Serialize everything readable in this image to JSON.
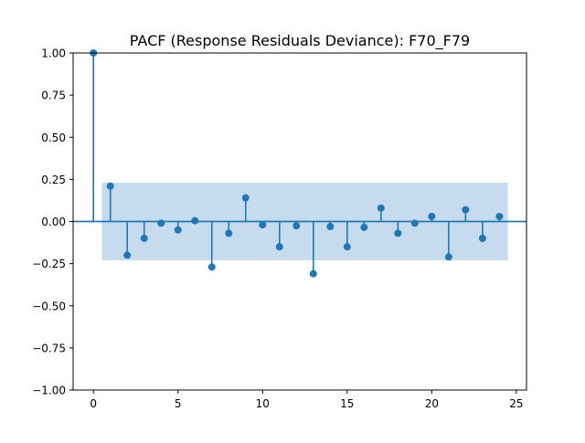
{
  "chart_data": {
    "type": "stem",
    "title": "PACF (Response Residuals Deviance): F70_F79",
    "xlabel": "",
    "ylabel": "",
    "xlim": [
      -1.2,
      25.6
    ],
    "ylim": [
      -1.0,
      1.0
    ],
    "x_ticks": [
      0,
      5,
      10,
      15,
      20,
      25
    ],
    "x_tick_labels": [
      "0",
      "5",
      "10",
      "15",
      "20",
      "25"
    ],
    "y_ticks": [
      1.0,
      0.75,
      0.5,
      0.25,
      0.0,
      -0.25,
      -0.5,
      -0.75,
      -1.0
    ],
    "y_tick_labels": [
      "1.00",
      "0.75",
      "0.50",
      "0.25",
      "0.00",
      "−0.25",
      "−0.50",
      "−0.75",
      "−1.00"
    ],
    "grid": false,
    "lags": [
      0,
      1,
      2,
      3,
      4,
      5,
      6,
      7,
      8,
      9,
      10,
      11,
      12,
      13,
      14,
      15,
      16,
      17,
      18,
      19,
      20,
      21,
      22,
      23,
      24
    ],
    "values": [
      1.0,
      0.21,
      -0.2,
      -0.1,
      -0.01,
      -0.05,
      0.005,
      -0.27,
      -0.07,
      0.14,
      -0.02,
      -0.15,
      -0.025,
      -0.31,
      -0.03,
      -0.15,
      -0.035,
      0.08,
      -0.07,
      -0.01,
      0.03,
      -0.21,
      0.07,
      -0.1,
      0.03
    ],
    "confidence_band": {
      "x_start": 0.5,
      "x_end": 24.5,
      "lower": -0.23,
      "upper": 0.23
    },
    "colors": {
      "stem": "#1f77b4",
      "band": "#c6dcee",
      "axes": "#000000"
    }
  }
}
